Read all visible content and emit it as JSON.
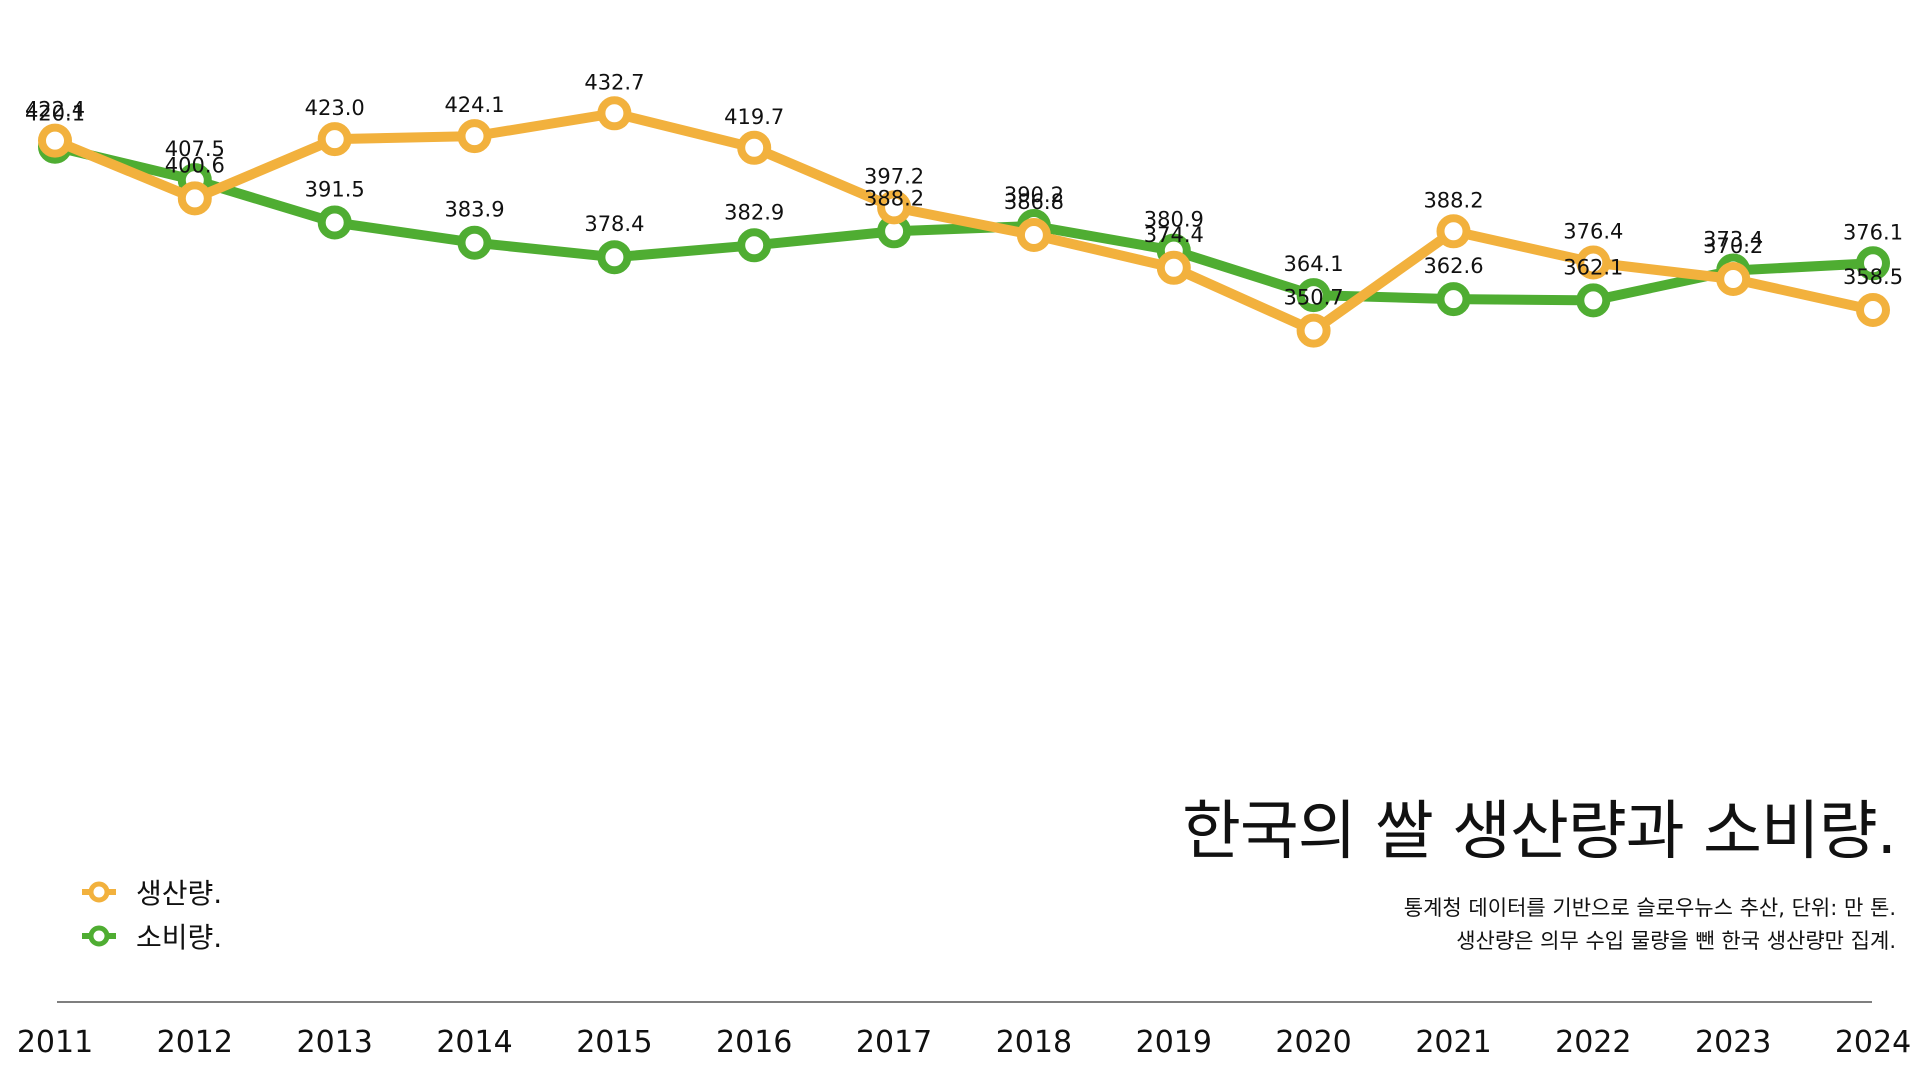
{
  "chart_data": {
    "type": "line",
    "title": "한국의 쌀 생산량과 소비량.",
    "subtitle_lines": [
      "통계청 데이터를 기반으로 슬로우뉴스 추산, 단위: 만 톤.",
      "생산량은 의무 수입 물량을 뺀 한국 생산량만 집계."
    ],
    "x": [
      "2011",
      "2012",
      "2013",
      "2014",
      "2015",
      "2016",
      "2017",
      "2018",
      "2019",
      "2020",
      "2021",
      "2022",
      "2023",
      "2024"
    ],
    "series": [
      {
        "name": "생산량.",
        "color": "#f2b13d",
        "values": [
          422.4,
          400.6,
          423.0,
          424.1,
          432.7,
          419.7,
          397.2,
          386.8,
          374.4,
          350.7,
          388.2,
          376.4,
          370.2,
          358.5
        ]
      },
      {
        "name": "소비량.",
        "color": "#4fad32",
        "values": [
          420.1,
          407.5,
          391.5,
          383.9,
          378.4,
          382.9,
          388.2,
          390.2,
          380.9,
          364.1,
          362.6,
          362.1,
          373.4,
          376.1
        ]
      }
    ],
    "xlabel": "",
    "ylabel": "",
    "ylim": [
      0,
      440
    ],
    "grid": false,
    "legend_position": "bottom-left"
  }
}
